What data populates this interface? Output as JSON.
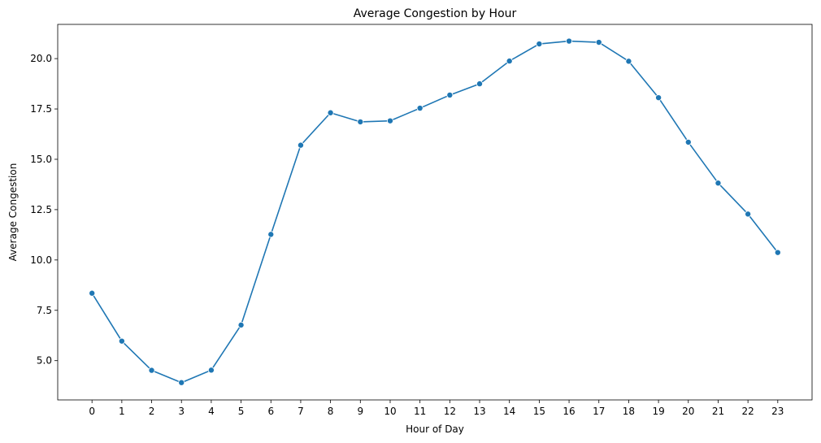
{
  "chart_data": {
    "type": "line",
    "title": "Average Congestion by Hour",
    "xlabel": "Hour of Day",
    "ylabel": "Average Congestion",
    "x": [
      0,
      1,
      2,
      3,
      4,
      5,
      6,
      7,
      8,
      9,
      10,
      11,
      12,
      13,
      14,
      15,
      16,
      17,
      18,
      19,
      20,
      21,
      22,
      23
    ],
    "x_tick_labels": [
      "0",
      "1",
      "2",
      "3",
      "4",
      "5",
      "6",
      "7",
      "8",
      "9",
      "10",
      "11",
      "12",
      "13",
      "14",
      "15",
      "16",
      "17",
      "18",
      "19",
      "20",
      "21",
      "22",
      "23"
    ],
    "y_ticks": [
      5.0,
      7.5,
      10.0,
      12.5,
      15.0,
      17.5,
      20.0
    ],
    "y_tick_labels": [
      "5.0",
      "7.5",
      "10.0",
      "12.5",
      "15.0",
      "17.5",
      "20.0"
    ],
    "xlim": [
      -1.15,
      24.15
    ],
    "ylim": [
      3.05,
      21.7
    ],
    "grid": false,
    "series": [
      {
        "color": "#1f77b4",
        "marker": "circle",
        "values": [
          8.35,
          5.97,
          4.52,
          3.91,
          4.53,
          6.77,
          11.27,
          15.7,
          17.31,
          16.86,
          16.91,
          17.54,
          18.19,
          18.75,
          19.88,
          20.73,
          20.87,
          20.81,
          19.87,
          18.06,
          15.85,
          13.82,
          12.28,
          10.37
        ]
      }
    ]
  }
}
